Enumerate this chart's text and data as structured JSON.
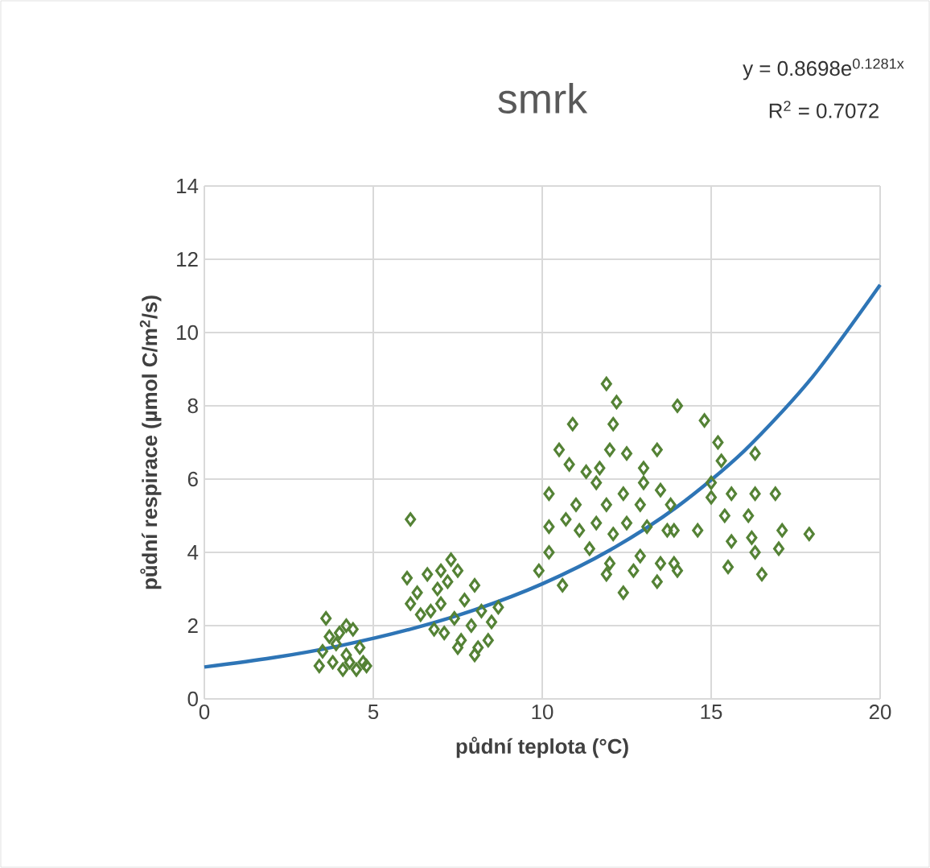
{
  "chart_data": {
    "type": "scatter",
    "title": "smrk",
    "xlabel": "půdní teplota (°C)",
    "ylabel": "půdní respirace (µmol C/m$^{2}$/s)",
    "annotations": [
      "y = 0.8698e$^{0.1281x}$",
      "R$^{2}$ = 0.7072"
    ],
    "xlim": [
      0,
      20
    ],
    "ylim": [
      0,
      14
    ],
    "xticks": [
      0,
      5,
      10,
      15,
      20
    ],
    "yticks": [
      0,
      2,
      4,
      6,
      8,
      10,
      12,
      14
    ],
    "grid": true,
    "marker": "diamond",
    "series": [
      {
        "color": "#548235",
        "x": [
          3.4,
          3.5,
          3.6,
          3.8,
          3.9,
          4.0,
          4.1,
          4.2,
          4.3,
          4.4,
          4.5,
          4.6,
          4.7,
          4.8,
          3.7,
          4.2,
          6.1,
          6.0,
          6.1,
          6.3,
          6.6,
          6.7,
          6.8,
          6.9,
          7.0,
          7.1,
          7.2,
          7.3,
          7.4,
          7.5,
          7.6,
          7.7,
          7.9,
          8.0,
          8.1,
          8.2,
          8.4,
          8.5,
          8.7,
          6.4,
          7.0,
          7.5,
          8.0,
          11.9,
          12.2,
          14.0,
          10.9,
          12.1,
          10.5,
          12.0,
          12.5,
          13.4,
          10.8,
          11.3,
          11.7,
          13.0,
          10.2,
          11.6,
          12.4,
          13.0,
          13.5,
          11.0,
          11.9,
          12.9,
          13.8,
          10.7,
          11.6,
          12.5,
          10.2,
          11.1,
          12.1,
          13.1,
          13.7,
          10.2,
          11.4,
          12.9,
          13.5,
          9.9,
          12.0,
          12.7,
          10.6,
          11.9,
          12.4,
          13.4,
          14.0,
          14.8,
          15.2,
          15.3,
          16.3,
          15.0,
          15.6,
          16.3,
          16.9,
          15.0,
          15.4,
          16.1,
          14.6,
          15.6,
          16.2,
          17.1,
          17.9,
          13.9,
          16.3,
          17.0,
          15.5,
          16.5,
          13.9
        ],
        "values": [
          0.9,
          1.3,
          2.2,
          1.0,
          1.5,
          1.8,
          0.8,
          1.2,
          1.0,
          1.9,
          0.8,
          1.4,
          1.0,
          0.9,
          1.7,
          2.0,
          4.9,
          3.3,
          2.6,
          2.9,
          3.4,
          2.4,
          1.9,
          3.0,
          2.6,
          1.8,
          3.2,
          3.8,
          2.2,
          3.5,
          1.6,
          2.7,
          2.0,
          3.1,
          1.4,
          2.4,
          1.6,
          2.1,
          2.5,
          2.3,
          3.5,
          1.4,
          1.2,
          8.6,
          8.1,
          8.0,
          7.5,
          7.5,
          6.8,
          6.8,
          6.7,
          6.8,
          6.4,
          6.2,
          6.3,
          6.3,
          5.6,
          5.9,
          5.6,
          5.9,
          5.7,
          5.3,
          5.3,
          5.3,
          5.3,
          4.9,
          4.8,
          4.8,
          4.7,
          4.6,
          4.5,
          4.7,
          4.6,
          4.0,
          4.1,
          3.9,
          3.7,
          3.5,
          3.7,
          3.5,
          3.1,
          3.4,
          2.9,
          3.2,
          3.5,
          7.6,
          7.0,
          6.5,
          6.7,
          5.9,
          5.6,
          5.6,
          5.6,
          5.5,
          5.0,
          5.0,
          4.6,
          4.3,
          4.4,
          4.6,
          4.5,
          4.6,
          4.0,
          4.1,
          3.6,
          3.4,
          3.7
        ]
      },
      {
        "type": "line",
        "color": "#2e75b6",
        "marker": "none",
        "x": [
          0,
          2,
          4,
          6,
          8,
          10,
          12,
          14,
          16,
          18,
          20
        ],
        "values": [
          0.87,
          1.12,
          1.45,
          1.88,
          2.43,
          3.14,
          4.06,
          5.25,
          6.79,
          8.79,
          11.3
        ]
      }
    ]
  }
}
